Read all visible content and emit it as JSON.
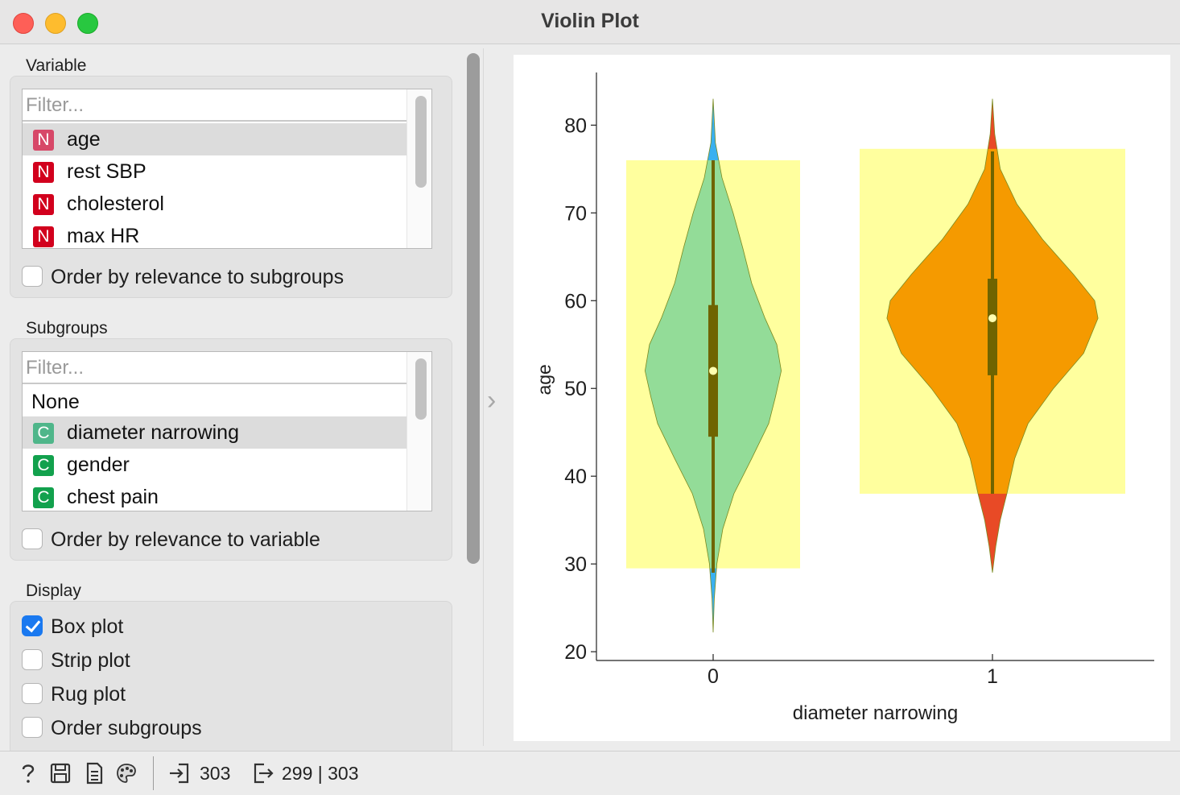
{
  "window": {
    "title": "Violin Plot"
  },
  "variable": {
    "label": "Variable",
    "filter_placeholder": "Filter...",
    "items": [
      {
        "type": "N",
        "label": "age",
        "selected": true
      },
      {
        "type": "N",
        "label": "rest SBP",
        "selected": false
      },
      {
        "type": "N",
        "label": "cholesterol",
        "selected": false
      },
      {
        "type": "N",
        "label": "max HR",
        "selected": false
      }
    ],
    "order_checkbox": {
      "label": "Order by relevance to subgroups",
      "checked": false
    }
  },
  "subgroups": {
    "label": "Subgroups",
    "filter_placeholder": "Filter...",
    "none_label": "None",
    "items": [
      {
        "type": "C",
        "label": "diameter narrowing",
        "selected": true
      },
      {
        "type": "C",
        "label": "gender",
        "selected": false
      },
      {
        "type": "C",
        "label": "chest pain",
        "selected": false
      }
    ],
    "order_checkbox": {
      "label": "Order by relevance to variable",
      "checked": false
    }
  },
  "display": {
    "label": "Display",
    "options": [
      {
        "label": "Box plot",
        "checked": true
      },
      {
        "label": "Strip plot",
        "checked": false
      },
      {
        "label": "Rug plot",
        "checked": false
      },
      {
        "label": "Order subgroups",
        "checked": false
      }
    ]
  },
  "chart_data": {
    "type": "violin",
    "xlabel": "diameter narrowing",
    "ylabel": "age",
    "categories": [
      "0",
      "1"
    ],
    "yticks": [
      20,
      30,
      40,
      50,
      60,
      70,
      80
    ],
    "ylim": [
      19,
      86
    ],
    "colors": {
      "0": "#93dc98",
      "1": "#f59a00",
      "highlight": "#ffff99",
      "box": "#6f6400",
      "median_dot": "#ffffb0",
      "tail_0": "#3ab0f0",
      "tail_1": "#e84a26"
    },
    "violins": [
      {
        "category": "0",
        "min": 22.2,
        "max": 83,
        "q1": 44.5,
        "median": 52,
        "q3": 59.5,
        "whisker_low": 29,
        "whisker_high": 76,
        "selection_range": [
          29.5,
          76
        ],
        "density": [
          [
            22.2,
            0.0
          ],
          [
            26,
            0.015
          ],
          [
            30,
            0.05
          ],
          [
            34,
            0.13
          ],
          [
            38,
            0.28
          ],
          [
            42,
            0.52
          ],
          [
            46,
            0.75
          ],
          [
            49,
            0.84
          ],
          [
            52,
            0.92
          ],
          [
            55,
            0.86
          ],
          [
            58,
            0.7
          ],
          [
            62,
            0.52
          ],
          [
            66,
            0.4
          ],
          [
            70,
            0.27
          ],
          [
            74,
            0.12
          ],
          [
            78,
            0.03
          ],
          [
            83,
            0.0
          ]
        ]
      },
      {
        "category": "1",
        "min": 29,
        "max": 83,
        "q1": 51.5,
        "median": 58,
        "q3": 62.5,
        "whisker_low": 38,
        "whisker_high": 77,
        "selection_range": [
          38,
          77.3
        ],
        "density": [
          [
            29,
            0.0
          ],
          [
            32,
            0.03
          ],
          [
            35,
            0.07
          ],
          [
            38,
            0.13
          ],
          [
            42,
            0.2
          ],
          [
            46,
            0.32
          ],
          [
            50,
            0.55
          ],
          [
            54,
            0.82
          ],
          [
            58,
            0.95
          ],
          [
            60,
            0.92
          ],
          [
            63,
            0.73
          ],
          [
            67,
            0.45
          ],
          [
            71,
            0.22
          ],
          [
            75,
            0.07
          ],
          [
            79,
            0.02
          ],
          [
            83,
            0.0
          ]
        ]
      }
    ]
  },
  "status": {
    "input_count": "303",
    "output_counts": "299 | 303"
  }
}
